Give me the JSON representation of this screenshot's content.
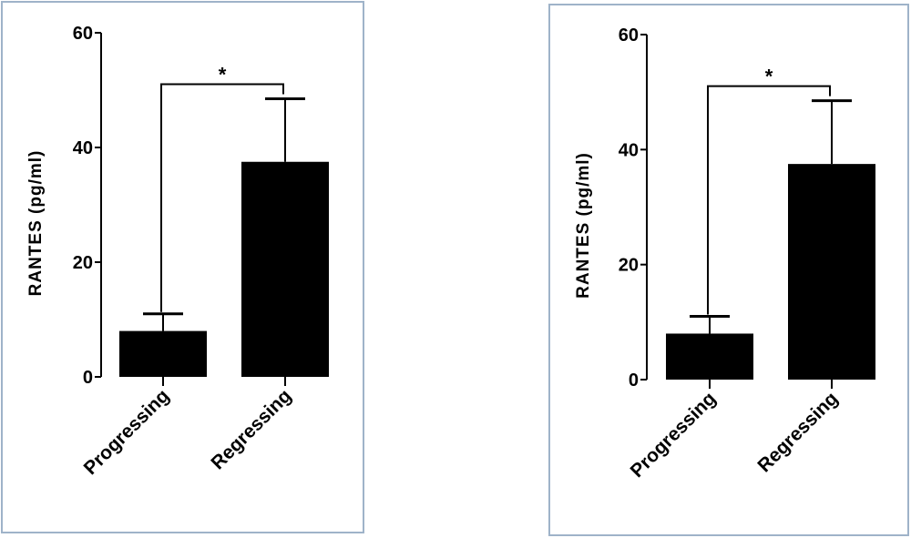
{
  "chart_data": [
    {
      "type": "bar",
      "title": "",
      "categories": [
        "Progressing",
        "Regressing"
      ],
      "values": [
        8,
        37.5
      ],
      "error_upper": [
        11,
        48.5
      ],
      "ylabel": "RANTES (pg/ml)",
      "xlabel": "",
      "ylim": [
        0,
        60
      ],
      "yticks": [
        "0",
        "20",
        "40",
        "60"
      ],
      "significance": "*",
      "bar_color": "#000000",
      "grid": false
    },
    {
      "type": "bar",
      "title": "",
      "categories": [
        "Progressing",
        "Regressing"
      ],
      "values": [
        8,
        37.5
      ],
      "error_upper": [
        11,
        48.5
      ],
      "ylabel": "RANTES (pg/ml)",
      "xlabel": "",
      "ylim": [
        0,
        60
      ],
      "yticks": [
        "0",
        "20",
        "40",
        "60"
      ],
      "significance": "*",
      "bar_color": "#000000",
      "grid": false
    }
  ]
}
